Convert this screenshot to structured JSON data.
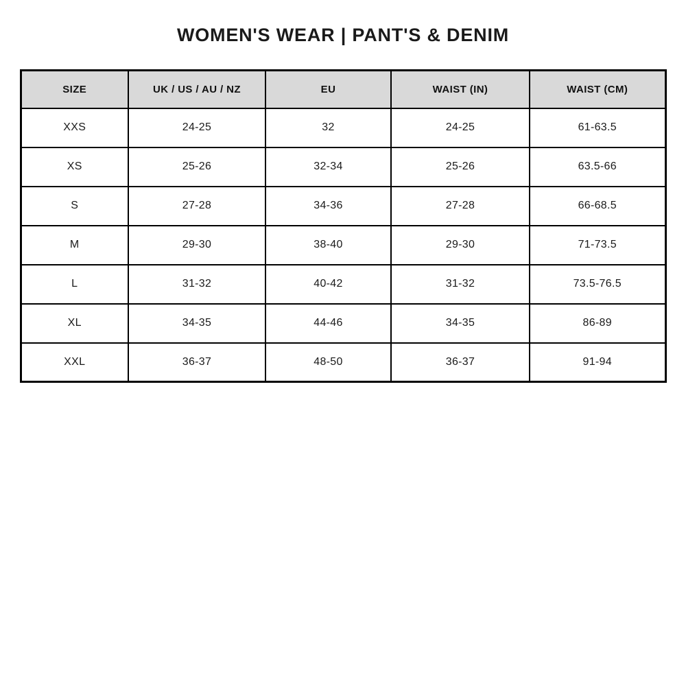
{
  "page": {
    "title": "WOMEN'S WEAR | PANT'S & DENIM"
  },
  "colors": {
    "header_background": "#d9d9d9",
    "border": "#000000",
    "text": "#1a1a1a",
    "page_background": "#ffffff"
  },
  "table": {
    "headers": [
      "SIZE",
      "UK / US / AU / NZ",
      "EU",
      "WAIST (IN)",
      "WAIST (CM)"
    ],
    "rows": [
      [
        "XXS",
        "24-25",
        "32",
        "24-25",
        "61-63.5"
      ],
      [
        "XS",
        "25-26",
        "32-34",
        "25-26",
        "63.5-66"
      ],
      [
        "S",
        "27-28",
        "34-36",
        "27-28",
        "66-68.5"
      ],
      [
        "M",
        "29-30",
        "38-40",
        "29-30",
        "71-73.5"
      ],
      [
        "L",
        "31-32",
        "40-42",
        "31-32",
        "73.5-76.5"
      ],
      [
        "XL",
        "34-35",
        "44-46",
        "34-35",
        "86-89"
      ],
      [
        "XXL",
        "36-37",
        "48-50",
        "36-37",
        "91-94"
      ]
    ]
  }
}
